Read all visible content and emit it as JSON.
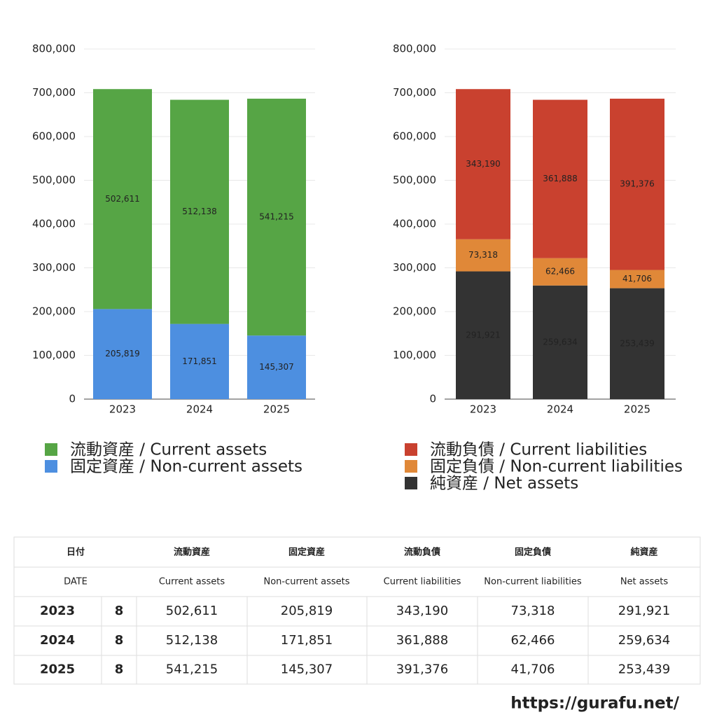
{
  "chart_data": [
    {
      "type": "stacked_bar",
      "categories": [
        "2023",
        "2024",
        "2025"
      ],
      "series": [
        {
          "name": "流動資産 / Current assets",
          "color": "#56a545",
          "values": [
            502611,
            512138,
            541215
          ],
          "value_labels": [
            "502,611",
            "512,138",
            "541,215"
          ]
        },
        {
          "name": "固定資産 / Non-current assets",
          "color": "#4d8fe0",
          "values": [
            205819,
            171851,
            145307
          ],
          "value_labels": [
            "205,819",
            "171,851",
            "145,307"
          ]
        }
      ],
      "ylim": [
        0,
        800000
      ],
      "yticks": [
        0,
        {
          "value": 100000,
          "label": "100,000"
        },
        {
          "value": 200000,
          "label": "200,000"
        },
        {
          "value": 300000,
          "label": "300,000"
        },
        {
          "value": 400000,
          "label": "400,000"
        },
        {
          "value": 500000,
          "label": "500,000"
        },
        {
          "value": 600000,
          "label": "600,000"
        },
        {
          "value": 700000,
          "label": "700,000"
        },
        {
          "value": 800000,
          "label": "800,000"
        }
      ],
      "grid": true
    },
    {
      "type": "stacked_bar",
      "categories": [
        "2023",
        "2024",
        "2025"
      ],
      "series": [
        {
          "name": "流動負債 / Current liabilities",
          "color": "#c9412f",
          "values": [
            343190,
            361888,
            391376
          ],
          "value_labels": [
            "343,190",
            "361,888",
            "391,376"
          ]
        },
        {
          "name": "固定負債 / Non-current liabilities",
          "color": "#e08838",
          "values": [
            73318,
            62466,
            41706
          ],
          "value_labels": [
            "73,318",
            "62,466",
            "41,706"
          ]
        },
        {
          "name": "純資産 / Net assets",
          "color": "#333333",
          "values": [
            291921,
            259634,
            253439
          ],
          "value_labels": [
            "291,921",
            "259,634",
            "253,439"
          ]
        }
      ],
      "ylim": [
        0,
        800000
      ],
      "yticks": [
        0,
        {
          "value": 100000,
          "label": "100,000"
        },
        {
          "value": 200000,
          "label": "200,000"
        },
        {
          "value": 300000,
          "label": "300,000"
        },
        {
          "value": 400000,
          "label": "400,000"
        },
        {
          "value": 500000,
          "label": "500,000"
        },
        {
          "value": 600000,
          "label": "600,000"
        },
        {
          "value": 700000,
          "label": "700,000"
        },
        {
          "value": 800000,
          "label": "800,000"
        }
      ],
      "grid": true
    }
  ],
  "table": {
    "header": [
      "日付",
      "流動資産",
      "固定資産",
      "流動負債",
      "固定負債",
      "純資産"
    ],
    "subheader": [
      "DATE",
      "Current assets",
      "Non-current assets",
      "Current liabilities",
      "Non-current liabilities",
      "Net assets"
    ],
    "rows": [
      [
        "2023",
        "8",
        "502,611",
        "205,819",
        "343,190",
        "73,318",
        "291,921"
      ],
      [
        "2024",
        "8",
        "512,138",
        "171,851",
        "361,888",
        "62,466",
        "259,634"
      ],
      [
        "2025",
        "8",
        "541,215",
        "145,307",
        "391,376",
        "41,706",
        "253,439"
      ]
    ]
  },
  "footer": {
    "url": "https://gurafu.net/"
  }
}
